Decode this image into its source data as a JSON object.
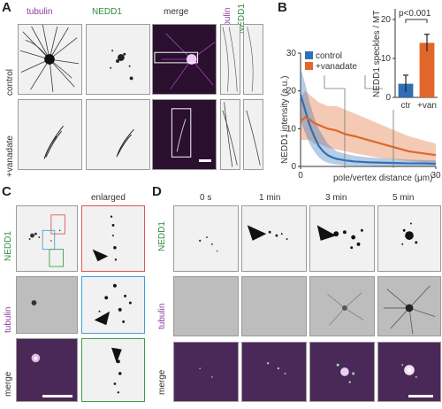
{
  "panels": {
    "a": {
      "letter": "A",
      "col_tubulin": "tubulin",
      "col_nedd1": "NEDD1",
      "col_merge": "merge",
      "inset_tubulin": "tubulin",
      "inset_nedd1": "NEDD1",
      "row_control": "control",
      "row_vanadate": "+vanadate"
    },
    "b": {
      "letter": "B"
    },
    "c": {
      "letter": "C",
      "header_enlarged": "enlarged",
      "row_nedd1": "NEDD1",
      "row_tubulin": "tubulin",
      "row_merge": "merge"
    },
    "d": {
      "letter": "D",
      "times": [
        "0 s",
        "1 min",
        "3 min",
        "5 min"
      ],
      "row_nedd1": "NEDD1",
      "row_tubulin": "tubulin",
      "row_merge": "merge"
    }
  },
  "chart_data": [
    {
      "type": "line",
      "xlabel": "pole/vertex distance (μm)",
      "ylabel": "NEDD1 intensity (a.u.)",
      "xlim": [
        0,
        30
      ],
      "ylim": [
        0,
        30
      ],
      "xticks": [
        "0",
        "30"
      ],
      "yticks": [
        "0",
        "10",
        "20",
        "30"
      ],
      "legend": "top-left",
      "series": [
        {
          "name": "control",
          "color": "#2f6fb5",
          "x": [
            0,
            1,
            2,
            3,
            4,
            5,
            6,
            7,
            8,
            10,
            12,
            15,
            18,
            21,
            24,
            27,
            30
          ],
          "y": [
            19,
            15,
            11,
            8,
            5.5,
            4,
            3,
            2.4,
            2,
            1.6,
            1.3,
            1.1,
            1.0,
            0.9,
            0.8,
            0.8,
            0.7
          ],
          "upper": [
            26,
            22,
            17,
            13,
            10,
            8,
            6,
            5,
            4,
            3.3,
            2.8,
            2.4,
            2.2,
            2.0,
            1.8,
            1.7,
            1.6
          ],
          "lower": [
            12,
            9,
            6,
            4,
            2.5,
            1.5,
            1,
            0.7,
            0.5,
            0.3,
            0.2,
            0.2,
            0.1,
            0.1,
            0.1,
            0.1,
            0.1
          ]
        },
        {
          "name": "+vanadate",
          "color": "#e0662a",
          "x": [
            0,
            1,
            2,
            3,
            4,
            6,
            8,
            10,
            12,
            15,
            18,
            21,
            24,
            27,
            30
          ],
          "y": [
            12,
            13,
            12.5,
            11.5,
            11,
            10,
            9.5,
            8.5,
            8,
            7,
            6,
            5,
            4,
            3.5,
            3
          ],
          "upper": [
            18,
            20,
            19,
            18,
            17,
            16,
            16,
            15,
            14,
            12.5,
            11,
            9.5,
            8,
            7,
            6
          ],
          "lower": [
            7,
            7,
            7,
            6,
            6,
            5,
            4.5,
            4,
            3.5,
            2.8,
            2.2,
            1.8,
            1.4,
            1.1,
            0.9
          ]
        }
      ]
    },
    {
      "type": "bar",
      "title": "p<0.001",
      "ylabel": "NEDD1 speckles / MT",
      "categories": [
        "ctr",
        "+van"
      ],
      "values": [
        3.5,
        14
      ],
      "errors": [
        2.2,
        2.2
      ],
      "colors": [
        "#2f6fb5",
        "#e0662a"
      ],
      "ylim": [
        0,
        20
      ],
      "yticks": [
        "0",
        "10",
        "20"
      ]
    }
  ]
}
